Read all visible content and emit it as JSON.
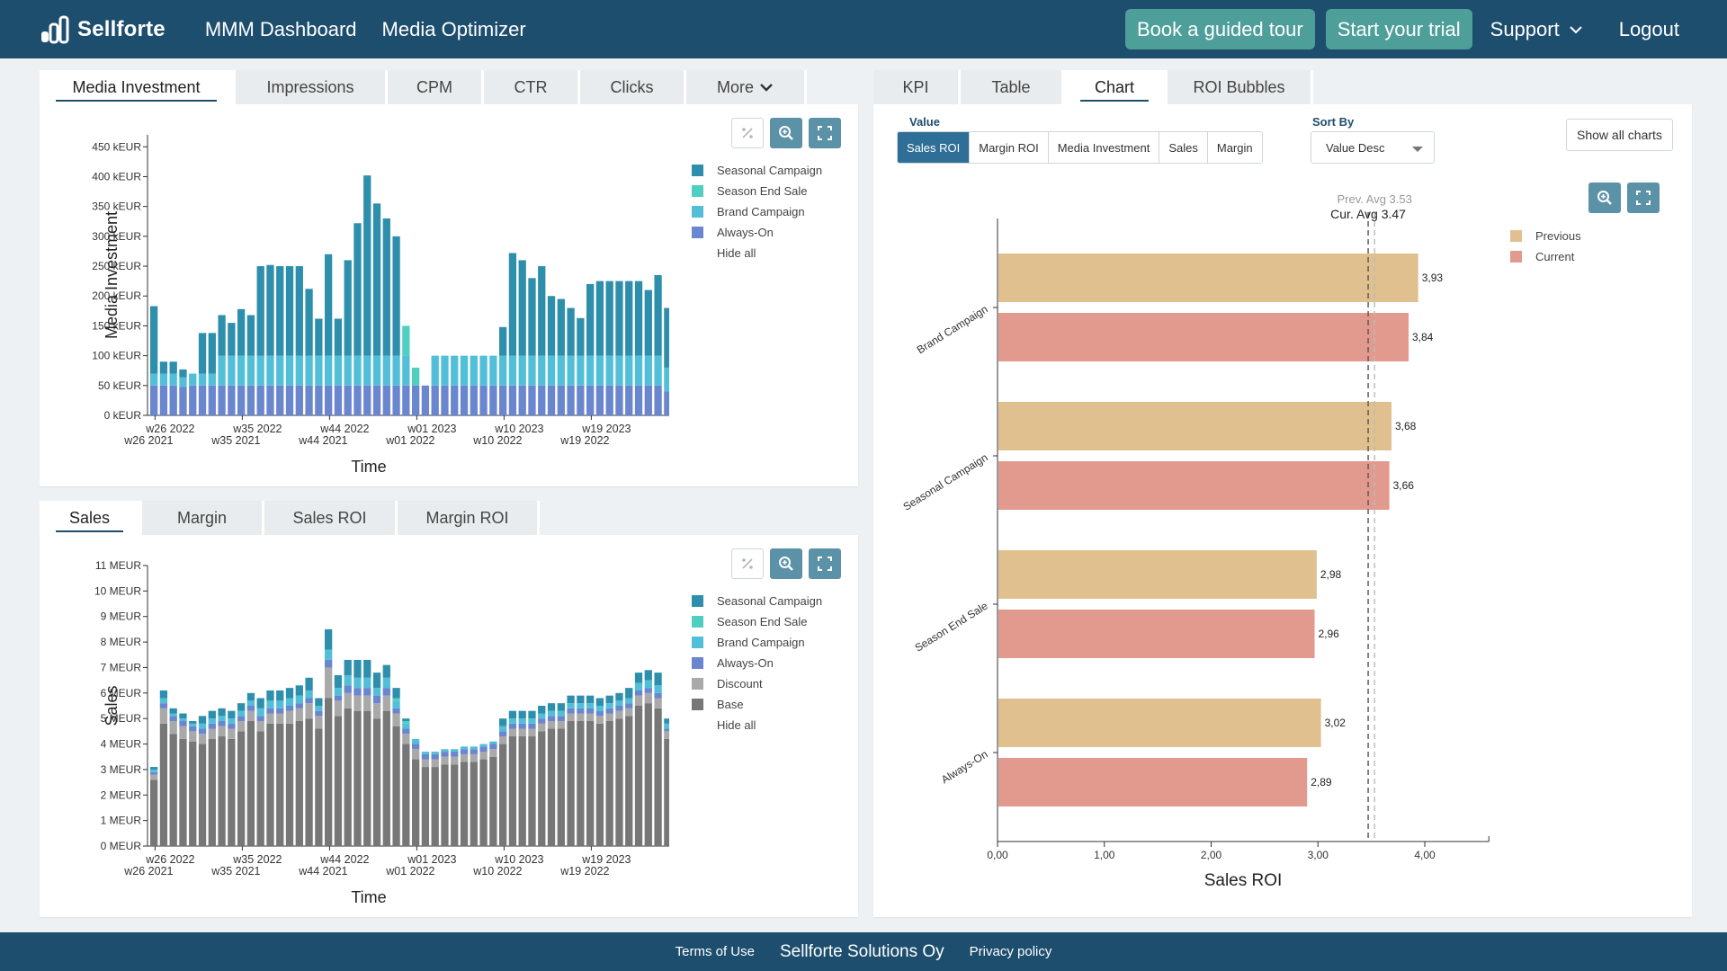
{
  "header": {
    "brand": "Sellforte",
    "nav": [
      "MMM Dashboard",
      "Media Optimizer"
    ],
    "guided_tour": "Book a guided tour",
    "trial": "Start your trial",
    "support": "Support",
    "logout": "Logout"
  },
  "colors": {
    "header_bg": "#1d4e6e",
    "seasonal": "#2e8fac",
    "season_end": "#4fcfc1",
    "brand": "#52bfd8",
    "always_on": "#6a86cf",
    "discount": "#a9a9a9",
    "base": "#777777",
    "previous": "#e1c08f",
    "current": "#e19a8d"
  },
  "investment_panel": {
    "tabs": [
      "Media Investment",
      "Impressions",
      "CPM",
      "CTR",
      "Clicks",
      "More"
    ],
    "active_tab": "Media Investment",
    "legend": [
      "Seasonal Campaign",
      "Season End Sale",
      "Brand Campaign",
      "Always-On"
    ],
    "hide_all": "Hide all"
  },
  "sales_panel": {
    "tabs": [
      "Sales",
      "Margin",
      "Sales ROI",
      "Margin ROI"
    ],
    "active_tab": "Sales",
    "legend": [
      "Seasonal Campaign",
      "Season End Sale",
      "Brand Campaign",
      "Always-On",
      "Discount",
      "Base"
    ],
    "hide_all": "Hide all"
  },
  "roi_panel": {
    "tabs": [
      "KPI",
      "Table",
      "Chart",
      "ROI Bubbles"
    ],
    "active_tab": "Chart",
    "value_label": "Value",
    "value_options": [
      "Sales ROI",
      "Margin ROI",
      "Media Investment",
      "Sales",
      "Margin"
    ],
    "value_selected": "Sales ROI",
    "sort_label": "Sort By",
    "sort_value": "Value Desc",
    "show_all": "Show all charts",
    "legend": [
      "Previous",
      "Current"
    ]
  },
  "chart_data": [
    {
      "type": "bar",
      "stacked": true,
      "ylabel": "Media Investment",
      "xlabel": "Time",
      "yticks": [
        "0 kEUR",
        "50 kEUR",
        "100 kEUR",
        "150 kEUR",
        "200 kEUR",
        "250 kEUR",
        "300 kEUR",
        "350 kEUR",
        "400 kEUR",
        "450 kEUR"
      ],
      "ylim": [
        0,
        470
      ],
      "xticks_top": [
        "w26 2022",
        "w35 2022",
        "w44 2022",
        "w01 2023",
        "w10 2023",
        "w19 2023"
      ],
      "xticks_bottom": [
        "w26 2021",
        "w35 2021",
        "w44 2021",
        "w01 2022",
        "w10 2022",
        "w19 2022"
      ],
      "xtick_index": [
        0,
        9,
        18,
        27,
        36,
        45
      ],
      "series": [
        {
          "name": "Always-On",
          "values": [
            50,
            50,
            50,
            48,
            50,
            50,
            50,
            50,
            50,
            50,
            50,
            50,
            50,
            50,
            50,
            50,
            50,
            50,
            50,
            50,
            50,
            50,
            50,
            50,
            50,
            50,
            50,
            50,
            50,
            50,
            50,
            50,
            50,
            50,
            50,
            50,
            50,
            50,
            50,
            50,
            50,
            50,
            50,
            50,
            50,
            50,
            50,
            50,
            50,
            50,
            50,
            50,
            50,
            40
          ]
        },
        {
          "name": "Brand Campaign",
          "values": [
            20,
            20,
            20,
            16,
            20,
            20,
            20,
            50,
            50,
            50,
            50,
            50,
            50,
            50,
            50,
            50,
            50,
            50,
            50,
            50,
            50,
            50,
            50,
            50,
            50,
            50,
            50,
            0,
            0,
            50,
            50,
            50,
            50,
            50,
            50,
            50,
            50,
            50,
            50,
            50,
            50,
            50,
            50,
            50,
            50,
            50,
            50,
            50,
            50,
            50,
            50,
            50,
            50,
            40
          ]
        },
        {
          "name": "Season End Sale",
          "values": [
            0,
            0,
            0,
            0,
            0,
            0,
            0,
            0,
            0,
            0,
            0,
            0,
            0,
            0,
            0,
            0,
            0,
            0,
            0,
            0,
            0,
            0,
            0,
            0,
            0,
            0,
            50,
            30,
            0,
            0,
            0,
            0,
            0,
            0,
            0,
            0,
            0,
            0,
            0,
            0,
            0,
            0,
            0,
            0,
            0,
            0,
            0,
            0,
            0,
            0,
            0,
            0,
            0,
            0
          ]
        },
        {
          "name": "Seasonal Campaign",
          "values": [
            113,
            20,
            20,
            13,
            0,
            68,
            68,
            68,
            55,
            78,
            68,
            150,
            152,
            150,
            150,
            150,
            112,
            62,
            170,
            62,
            160,
            222,
            302,
            255,
            230,
            200,
            0,
            0,
            0,
            0,
            0,
            0,
            0,
            0,
            0,
            0,
            48,
            172,
            160,
            130,
            150,
            100,
            95,
            80,
            63,
            120,
            125,
            125,
            125,
            125,
            125,
            110,
            135,
            100
          ]
        }
      ]
    },
    {
      "type": "bar",
      "stacked": true,
      "ylabel": "Sales",
      "xlabel": "Time",
      "yticks": [
        "0 MEUR",
        "1 MEUR",
        "2 MEUR",
        "3 MEUR",
        "4 MEUR",
        "5 MEUR",
        "6 MEUR",
        "7 MEUR",
        "8 MEUR",
        "9 MEUR",
        "10 MEUR",
        "11 MEUR"
      ],
      "ylim": [
        0,
        11
      ],
      "xticks_top": [
        "w26 2022",
        "w35 2022",
        "w44 2022",
        "w01 2023",
        "w10 2023",
        "w19 2023"
      ],
      "xticks_bottom": [
        "w26 2021",
        "w35 2021",
        "w44 2021",
        "w01 2022",
        "w10 2022",
        "w19 2022"
      ],
      "xtick_index": [
        0,
        9,
        18,
        27,
        36,
        45
      ],
      "series": [
        {
          "name": "Base",
          "values": [
            2.6,
            4.8,
            4.4,
            4.2,
            4.1,
            4.0,
            4.2,
            4.3,
            4.2,
            4.5,
            4.9,
            4.5,
            4.8,
            4.8,
            4.8,
            4.9,
            5.0,
            4.6,
            5.8,
            5.1,
            5.4,
            5.3,
            5.3,
            5.0,
            5.3,
            4.7,
            4.0,
            3.4,
            3.1,
            3.1,
            3.2,
            3.2,
            3.3,
            3.3,
            3.4,
            3.5,
            4.0,
            4.3,
            4.3,
            4.3,
            4.5,
            4.6,
            4.6,
            4.9,
            4.9,
            4.9,
            4.8,
            4.9,
            5.0,
            5.1,
            5.5,
            5.6,
            5.4,
            4.2
          ]
        },
        {
          "name": "Discount",
          "values": [
            0.2,
            0.6,
            0.5,
            0.5,
            0.4,
            0.4,
            0.4,
            0.4,
            0.4,
            0.4,
            0.4,
            0.4,
            0.4,
            0.4,
            0.5,
            0.5,
            0.6,
            0.5,
            1.2,
            0.6,
            0.6,
            0.6,
            0.6,
            0.6,
            0.6,
            0.5,
            0.4,
            0.4,
            0.3,
            0.3,
            0.3,
            0.3,
            0.3,
            0.3,
            0.3,
            0.3,
            0.3,
            0.3,
            0.3,
            0.3,
            0.3,
            0.3,
            0.3,
            0.3,
            0.3,
            0.3,
            0.3,
            0.3,
            0.3,
            0.3,
            0.4,
            0.4,
            0.4,
            0.3
          ]
        },
        {
          "name": "Always-On",
          "values": [
            0.1,
            0.2,
            0.2,
            0.2,
            0.2,
            0.2,
            0.2,
            0.2,
            0.2,
            0.2,
            0.2,
            0.2,
            0.2,
            0.2,
            0.2,
            0.2,
            0.2,
            0.2,
            0.3,
            0.2,
            0.3,
            0.3,
            0.3,
            0.3,
            0.3,
            0.2,
            0.2,
            0.2,
            0.2,
            0.2,
            0.2,
            0.2,
            0.2,
            0.2,
            0.2,
            0.2,
            0.2,
            0.2,
            0.2,
            0.2,
            0.2,
            0.2,
            0.2,
            0.2,
            0.2,
            0.2,
            0.2,
            0.2,
            0.2,
            0.2,
            0.2,
            0.2,
            0.2,
            0.1
          ]
        },
        {
          "name": "Brand Campaign",
          "values": [
            0.1,
            0.2,
            0.1,
            0.1,
            0.1,
            0.2,
            0.2,
            0.2,
            0.2,
            0.2,
            0.2,
            0.3,
            0.3,
            0.3,
            0.3,
            0.3,
            0.3,
            0.2,
            0.4,
            0.3,
            0.4,
            0.4,
            0.4,
            0.3,
            0.4,
            0.3,
            0.2,
            0.2,
            0.1,
            0.1,
            0.1,
            0.1,
            0.1,
            0.1,
            0.1,
            0.1,
            0.2,
            0.2,
            0.2,
            0.2,
            0.2,
            0.2,
            0.2,
            0.2,
            0.2,
            0.2,
            0.2,
            0.2,
            0.2,
            0.2,
            0.3,
            0.3,
            0.3,
            0.2
          ]
        },
        {
          "name": "Season End Sale",
          "values": [
            0,
            0,
            0,
            0,
            0,
            0,
            0,
            0,
            0,
            0,
            0,
            0,
            0,
            0,
            0,
            0,
            0,
            0,
            0,
            0,
            0,
            0,
            0,
            0,
            0,
            0.1,
            0.1,
            0,
            0,
            0,
            0,
            0,
            0,
            0,
            0,
            0,
            0,
            0,
            0,
            0,
            0,
            0,
            0,
            0,
            0,
            0,
            0,
            0,
            0,
            0,
            0,
            0,
            0,
            0
          ]
        },
        {
          "name": "Seasonal Campaign",
          "values": [
            0.1,
            0.3,
            0.2,
            0.2,
            0.1,
            0.3,
            0.3,
            0.3,
            0.3,
            0.3,
            0.3,
            0.4,
            0.4,
            0.4,
            0.4,
            0.4,
            0.5,
            0.3,
            0.8,
            0.5,
            0.6,
            0.7,
            0.7,
            0.6,
            0.5,
            0.4,
            0.1,
            0,
            0,
            0,
            0,
            0,
            0,
            0,
            0,
            0,
            0.3,
            0.3,
            0.3,
            0.3,
            0.3,
            0.3,
            0.3,
            0.3,
            0.3,
            0.3,
            0.3,
            0.3,
            0.3,
            0.4,
            0.4,
            0.4,
            0.5,
            0.2
          ]
        }
      ]
    },
    {
      "type": "bar",
      "orientation": "horizontal",
      "xlabel": "Sales ROI",
      "xlim": [
        0,
        4.6
      ],
      "xticks": [
        "0,00",
        "1,00",
        "2,00",
        "3,00",
        "4,00"
      ],
      "categories": [
        "Brand Campaign",
        "Seasonal Campaign",
        "Season End Sale",
        "Always-On"
      ],
      "series": [
        {
          "name": "Previous",
          "values": [
            3.93,
            3.68,
            2.98,
            3.02
          ],
          "labels": [
            "3,93",
            "3,68",
            "2,98",
            "3,02"
          ]
        },
        {
          "name": "Current",
          "values": [
            3.84,
            3.66,
            2.96,
            2.89
          ],
          "labels": [
            "3,84",
            "3,66",
            "2,96",
            "2,89"
          ]
        }
      ],
      "prev_avg": 3.53,
      "cur_avg": 3.47,
      "prev_avg_label": "Prev. Avg 3.53",
      "cur_avg_label": "Cur. Avg 3.47"
    }
  ],
  "footer": {
    "terms": "Terms of Use",
    "company": "Sellforte Solutions Oy",
    "privacy": "Privacy policy"
  }
}
